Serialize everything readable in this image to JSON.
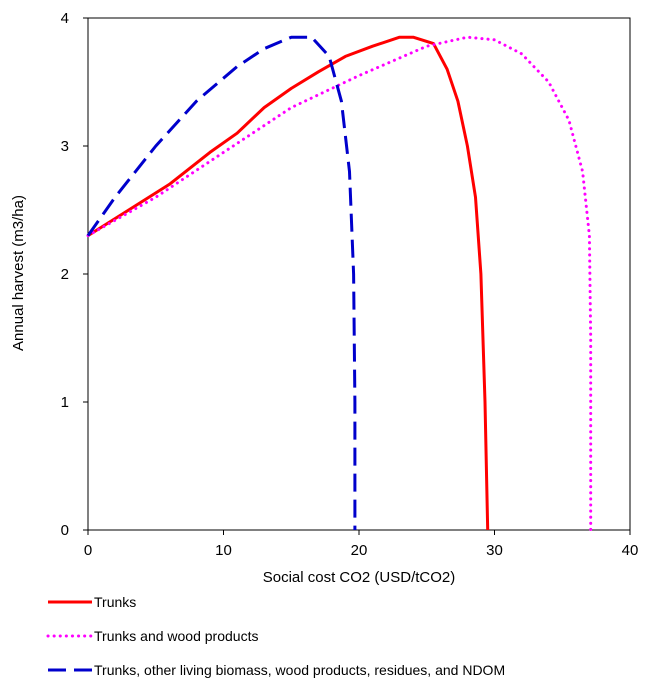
{
  "chart_data": {
    "type": "line",
    "title": "",
    "xlabel": "Social cost CO2 (USD/tCO2)",
    "ylabel": "Annual harvest (m3/ha)",
    "xlim": [
      0,
      40
    ],
    "ylim": [
      0,
      4
    ],
    "xticks": [
      "0",
      "10",
      "20",
      "30",
      "40"
    ],
    "yticks": [
      "0",
      "1",
      "2",
      "3",
      "4"
    ],
    "grid": false,
    "legend_position": "bottom",
    "series": [
      {
        "name": "Trunks",
        "color": "#ff0000",
        "style": "solid",
        "points": [
          [
            0,
            2.3
          ],
          [
            3,
            2.5
          ],
          [
            6,
            2.7
          ],
          [
            9,
            2.95
          ],
          [
            11,
            3.1
          ],
          [
            13,
            3.3
          ],
          [
            15,
            3.45
          ],
          [
            17,
            3.58
          ],
          [
            19,
            3.7
          ],
          [
            21,
            3.78
          ],
          [
            23,
            3.85
          ],
          [
            24,
            3.85
          ],
          [
            25.5,
            3.8
          ],
          [
            26.5,
            3.6
          ],
          [
            27.3,
            3.35
          ],
          [
            28,
            3.0
          ],
          [
            28.6,
            2.6
          ],
          [
            29,
            2.0
          ],
          [
            29.3,
            1.0
          ],
          [
            29.5,
            0
          ]
        ]
      },
      {
        "name": "Trunks and wood products",
        "color": "#ff00ff",
        "style": "dotted",
        "points": [
          [
            0,
            2.3
          ],
          [
            5,
            2.6
          ],
          [
            10,
            2.95
          ],
          [
            15,
            3.3
          ],
          [
            20,
            3.55
          ],
          [
            25,
            3.78
          ],
          [
            28,
            3.85
          ],
          [
            30,
            3.83
          ],
          [
            32,
            3.72
          ],
          [
            34,
            3.5
          ],
          [
            35.5,
            3.2
          ],
          [
            36.5,
            2.8
          ],
          [
            37,
            2.3
          ],
          [
            37.1,
            1.5
          ],
          [
            37.1,
            0
          ]
        ]
      },
      {
        "name": "Trunks, other living biomass, wood products, residues, and NDOM",
        "color": "#0000cc",
        "style": "dashed",
        "points": [
          [
            0,
            2.3
          ],
          [
            2,
            2.6
          ],
          [
            5,
            3.0
          ],
          [
            8,
            3.35
          ],
          [
            11,
            3.62
          ],
          [
            13,
            3.76
          ],
          [
            15,
            3.85
          ],
          [
            16.5,
            3.85
          ],
          [
            17.8,
            3.7
          ],
          [
            18.7,
            3.35
          ],
          [
            19.3,
            2.8
          ],
          [
            19.6,
            2.0
          ],
          [
            19.7,
            1.0
          ],
          [
            19.7,
            0
          ]
        ]
      }
    ]
  }
}
